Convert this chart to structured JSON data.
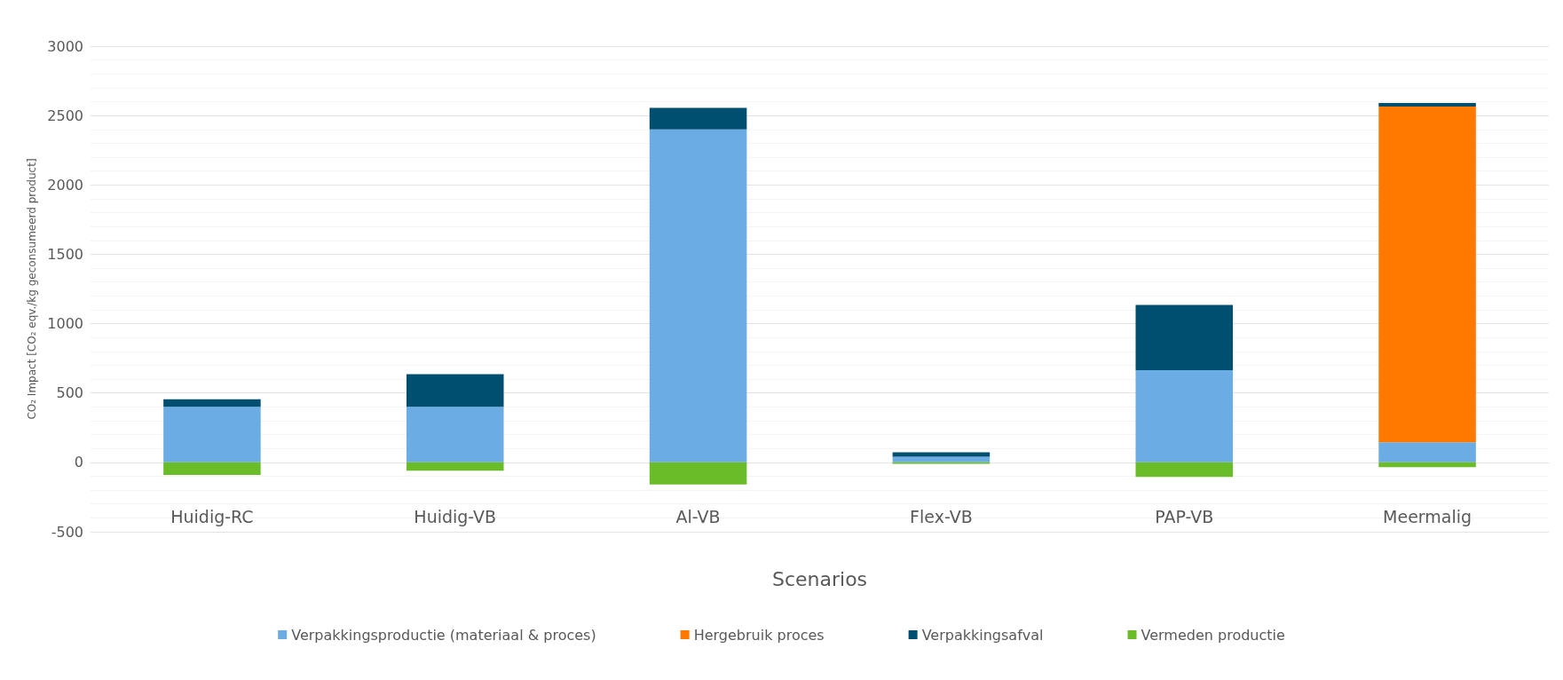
{
  "chart_data": {
    "type": "bar",
    "stacked": true,
    "xlabel": "Scenarios",
    "ylabel": "CO₂ Impact [CO₂ eqv./kg geconsumeerd product]",
    "categories": [
      "Huidig-RC",
      "Huidig-VB",
      "Al-VB",
      "Flex-VB",
      "PAP-VB",
      "Meermalig"
    ],
    "series": [
      {
        "name": "Verpakkingsproductie (materiaal & proces)",
        "color": "#6aace3",
        "values": [
          400,
          400,
          2400,
          40,
          665,
          145
        ]
      },
      {
        "name": "Hergebruik proces",
        "color": "#ff7800",
        "values": [
          null,
          null,
          null,
          null,
          null,
          2420
        ]
      },
      {
        "name": "Verpakkingsafval",
        "color": "#004f71",
        "values": [
          55,
          235,
          155,
          33,
          470,
          25
        ]
      },
      {
        "name": "Vermeden productie",
        "color": "#6abd28",
        "values": [
          -90,
          -60,
          -160,
          -10,
          -105,
          -35
        ]
      }
    ],
    "ylim": [
      -500,
      3000
    ],
    "yticks": [
      -500,
      0,
      500,
      1000,
      1500,
      2000,
      2500,
      3000
    ],
    "grid": true,
    "legend": "bottom"
  }
}
